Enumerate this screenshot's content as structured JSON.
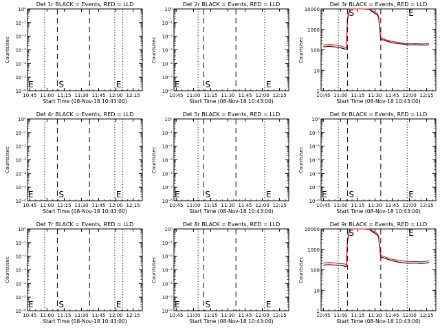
{
  "chart_data": [
    {
      "type": "line",
      "title": "Det 1r BLACK = Events, RED = LLD",
      "xlabel": "Start Time (08-Nov-18 10:43:00)",
      "ylabel": "Counts/sec",
      "x_tick_labels": [
        "10:45",
        "11:00",
        "11:15",
        "11:30",
        "11:45",
        "12:00",
        "12:15"
      ],
      "y_scale": "log",
      "y_tick_labels": [
        "10⁰",
        "10⁻¹",
        "10⁻²",
        "10⁻³",
        "10⁻⁴",
        "10⁻⁵",
        "10⁻⁶"
      ],
      "y_tick_values": [
        1,
        0.1,
        0.01,
        0.001,
        0.0001,
        1e-05,
        1e-06
      ],
      "markers": [
        {
          "type": "dotted",
          "x": "10:58"
        },
        {
          "type": "dashed",
          "x": "11:09",
          "label": "S"
        },
        {
          "type": "dashed",
          "x": "11:37"
        },
        {
          "type": "dotted",
          "x": "11:59",
          "label": "E"
        },
        {
          "type": "dotted",
          "x": "12:06"
        }
      ],
      "edge_label": "E",
      "series": []
    },
    {
      "type": "line",
      "title": "Det 2r BLACK = Events, RED = LLD",
      "xlabel": "Start Time (08-Nov-18 10:43:00)",
      "ylabel": "Counts/sec",
      "x_tick_labels": [
        "10:45",
        "11:00",
        "11:15",
        "11:30",
        "11:45",
        "12:00",
        "12:15"
      ],
      "y_scale": "log",
      "y_tick_labels": [
        "10⁰",
        "10⁻¹",
        "10⁻²",
        "10⁻³",
        "10⁻⁴",
        "10⁻⁵",
        "10⁻⁶"
      ],
      "y_tick_values": [
        1,
        0.1,
        0.01,
        0.001,
        0.0001,
        1e-05,
        1e-06
      ],
      "markers": [
        {
          "type": "dotted",
          "x": "11:04"
        },
        {
          "type": "dashed",
          "x": "11:09",
          "label": "S"
        },
        {
          "type": "dashed",
          "x": "11:37"
        },
        {
          "type": "dotted",
          "x": "12:02",
          "label": "E"
        }
      ],
      "edge_label": "E",
      "series": []
    },
    {
      "type": "line",
      "title": "Det 3r BLACK = Events, RED = LLD",
      "xlabel": "Start Time (08-Nov-18 10:43:00)",
      "ylabel": "Counts/sec",
      "x_tick_labels": [
        "10:45",
        "11:00",
        "11:15",
        "11:30",
        "11:45",
        "12:00",
        "12:15"
      ],
      "y_scale": "log",
      "y_tick_labels": [
        "1",
        "10",
        "100",
        "1000",
        "10000"
      ],
      "y_tick_values": [
        1,
        10,
        100,
        1000,
        10000
      ],
      "markers": [
        {
          "type": "dotted",
          "x": "10:58"
        },
        {
          "type": "dashed",
          "x": "11:06",
          "label": "S"
        },
        {
          "type": "dashed",
          "x": "11:35"
        },
        {
          "type": "dotted",
          "x": "11:58",
          "label": "E"
        }
      ],
      "series": [
        {
          "color": "#000000",
          "x": [
            "10:45",
            "10:50",
            "10:55",
            "11:00",
            "11:04",
            "11:05",
            "11:06",
            "11:08",
            "11:10",
            "11:15",
            "11:20",
            "11:25",
            "11:28",
            "11:30",
            "11:32",
            "11:33",
            "11:35",
            "11:38",
            "11:40",
            "11:45",
            "11:50",
            "11:55",
            "12:00",
            "12:05",
            "12:10",
            "12:15",
            "12:17"
          ],
          "y": [
            140,
            150,
            140,
            125,
            110,
            105,
            3000,
            11000,
            13000,
            13000,
            11000,
            9500,
            7000,
            6000,
            5000,
            4000,
            320,
            300,
            270,
            220,
            200,
            190,
            175,
            180,
            170,
            175,
            180
          ]
        },
        {
          "color": "#ff0000",
          "x": [
            "10:45",
            "10:50",
            "10:55",
            "11:00",
            "11:04",
            "11:05",
            "11:06",
            "11:08",
            "11:10",
            "11:15",
            "11:20",
            "11:25",
            "11:28",
            "11:30",
            "11:32",
            "11:33",
            "11:35",
            "11:38",
            "11:40",
            "11:45",
            "11:50",
            "11:55",
            "12:00",
            "12:05",
            "12:10",
            "12:15",
            "12:17"
          ],
          "y": [
            170,
            185,
            175,
            155,
            130,
            125,
            3500,
            13000,
            14000,
            14000,
            13000,
            11000,
            8000,
            7000,
            6000,
            4500,
            380,
            340,
            300,
            260,
            230,
            210,
            200,
            205,
            195,
            200,
            205
          ]
        }
      ]
    },
    {
      "type": "line",
      "title": "Det 4r BLACK = Events, RED = LLD",
      "xlabel": "Start Time (08-Nov-18 10:43:00)",
      "ylabel": "Counts/sec",
      "x_tick_labels": [
        "10:45",
        "11:00",
        "11:15",
        "11:30",
        "11:45",
        "12:00",
        "12:15"
      ],
      "y_scale": "log",
      "y_tick_labels": [
        "10⁰",
        "10⁻¹",
        "10⁻²",
        "10⁻³",
        "10⁻⁴",
        "10⁻⁵",
        "10⁻⁶"
      ],
      "y_tick_values": [
        1,
        0.1,
        0.01,
        0.001,
        0.0001,
        1e-05,
        1e-06
      ],
      "markers": [
        {
          "type": "dotted",
          "x": "10:58"
        },
        {
          "type": "dashed",
          "x": "11:09",
          "label": "S"
        },
        {
          "type": "dashed",
          "x": "11:37"
        },
        {
          "type": "dotted",
          "x": "11:59",
          "label": "E"
        },
        {
          "type": "dotted",
          "x": "12:06"
        }
      ],
      "edge_label": "E",
      "series": []
    },
    {
      "type": "line",
      "title": "Det 5r BLACK = Events, RED = LLD",
      "xlabel": "Start Time (08-Nov-18 10:43:00)",
      "ylabel": "Counts/sec",
      "x_tick_labels": [
        "10:45",
        "11:00",
        "11:15",
        "11:30",
        "11:45",
        "12:00",
        "12:15"
      ],
      "y_scale": "log",
      "y_tick_labels": [
        "10⁰",
        "10⁻¹",
        "10⁻²",
        "10⁻³",
        "10⁻⁴",
        "10⁻⁵",
        "10⁻⁶"
      ],
      "y_tick_values": [
        1,
        0.1,
        0.01,
        0.001,
        0.0001,
        1e-05,
        1e-06
      ],
      "markers": [
        {
          "type": "dotted",
          "x": "11:04"
        },
        {
          "type": "dashed",
          "x": "11:09",
          "label": "S"
        },
        {
          "type": "dashed",
          "x": "11:37"
        },
        {
          "type": "dotted",
          "x": "12:02",
          "label": "E"
        }
      ],
      "edge_label": "E",
      "series": []
    },
    {
      "type": "line",
      "title": "Det 6r BLACK = Events, RED = LLD",
      "xlabel": "Start Time (08-Nov-18 10:43:00)",
      "ylabel": "Counts/sec",
      "x_tick_labels": [
        "10:45",
        "11:00",
        "11:15",
        "11:30",
        "11:45",
        "12:00",
        "12:15"
      ],
      "y_scale": "log",
      "y_tick_labels": [
        "10⁰",
        "10⁻¹",
        "10⁻²",
        "10⁻³",
        "10⁻⁴",
        "10⁻⁵",
        "10⁻⁶"
      ],
      "y_tick_values": [
        1,
        0.1,
        0.01,
        0.001,
        0.0001,
        1e-05,
        1e-06
      ],
      "markers": [
        {
          "type": "dotted",
          "x": "10:58"
        },
        {
          "type": "dashed",
          "x": "11:06",
          "label": "S"
        },
        {
          "type": "dashed",
          "x": "11:35"
        },
        {
          "type": "dotted",
          "x": "11:58",
          "label": "E"
        }
      ],
      "edge_label": "E",
      "series": []
    },
    {
      "type": "line",
      "title": "Det 7r BLACK = Events, RED = LLD",
      "xlabel": "Start Time (08-Nov-18 10:43:00)",
      "ylabel": "Counts/sec",
      "x_tick_labels": [
        "10:45",
        "11:00",
        "11:15",
        "11:30",
        "11:45",
        "12:00",
        "12:15"
      ],
      "y_scale": "log",
      "y_tick_labels": [
        "10⁰",
        "10⁻¹",
        "10⁻²",
        "10⁻³",
        "10⁻⁴",
        "10⁻⁵",
        "10⁻⁶"
      ],
      "y_tick_values": [
        1,
        0.1,
        0.01,
        0.001,
        0.0001,
        1e-05,
        1e-06
      ],
      "markers": [
        {
          "type": "dotted",
          "x": "10:58"
        },
        {
          "type": "dashed",
          "x": "11:09",
          "label": "S"
        },
        {
          "type": "dashed",
          "x": "11:37"
        },
        {
          "type": "dotted",
          "x": "11:59",
          "label": "E"
        },
        {
          "type": "dotted",
          "x": "12:06"
        }
      ],
      "edge_label": "E",
      "series": []
    },
    {
      "type": "line",
      "title": "Det 8r BLACK = Events, RED = LLD",
      "xlabel": "Start Time (08-Nov-18 10:43:00)",
      "ylabel": "Counts/sec",
      "x_tick_labels": [
        "10:45",
        "11:00",
        "11:15",
        "11:30",
        "11:45",
        "12:00",
        "12:15"
      ],
      "y_scale": "log",
      "y_tick_labels": [
        "10⁰",
        "10⁻¹",
        "10⁻²",
        "10⁻³",
        "10⁻⁴",
        "10⁻⁵",
        "10⁻⁶"
      ],
      "y_tick_values": [
        1,
        0.1,
        0.01,
        0.001,
        0.0001,
        1e-05,
        1e-06
      ],
      "markers": [
        {
          "type": "dotted",
          "x": "11:04"
        },
        {
          "type": "dashed",
          "x": "11:09",
          "label": "S"
        },
        {
          "type": "dashed",
          "x": "11:37"
        },
        {
          "type": "dotted",
          "x": "12:02",
          "label": "E"
        }
      ],
      "edge_label": "E",
      "series": []
    },
    {
      "type": "line",
      "title": "Det 9r BLACK = Events, RED = LLD",
      "xlabel": "Start Time (08-Nov-18 10:43:00)",
      "ylabel": "Counts/sec",
      "x_tick_labels": [
        "10:45",
        "11:00",
        "11:15",
        "11:30",
        "11:45",
        "12:00",
        "12:15"
      ],
      "y_scale": "log",
      "y_tick_labels": [
        "1",
        "10",
        "100",
        "1000",
        "10000"
      ],
      "y_tick_values": [
        1,
        10,
        100,
        1000,
        10000
      ],
      "markers": [
        {
          "type": "dotted",
          "x": "10:58"
        },
        {
          "type": "dashed",
          "x": "11:06",
          "label": "S"
        },
        {
          "type": "dashed",
          "x": "11:35"
        },
        {
          "type": "dotted",
          "x": "11:58",
          "label": "E"
        }
      ],
      "series": [
        {
          "color": "#000000",
          "x": [
            "10:45",
            "10:50",
            "10:55",
            "11:00",
            "11:04",
            "11:05",
            "11:06",
            "11:08",
            "11:10",
            "11:15",
            "11:20",
            "11:25",
            "11:28",
            "11:30",
            "11:32",
            "11:33",
            "11:35",
            "11:38",
            "11:40",
            "11:45",
            "11:50",
            "11:55",
            "12:00",
            "12:05",
            "12:10",
            "12:15",
            "12:17"
          ],
          "y": [
            170,
            180,
            170,
            165,
            150,
            145,
            2500,
            11000,
            13000,
            13000,
            11000,
            9500,
            7000,
            6000,
            5000,
            4000,
            420,
            380,
            340,
            280,
            240,
            220,
            210,
            215,
            205,
            215,
            230
          ]
        },
        {
          "color": "#ff0000",
          "x": [
            "10:45",
            "10:50",
            "10:55",
            "11:00",
            "11:04",
            "11:05",
            "11:06",
            "11:08",
            "11:10",
            "11:15",
            "11:20",
            "11:25",
            "11:28",
            "11:30",
            "11:32",
            "11:33",
            "11:35",
            "11:38",
            "11:40",
            "11:45",
            "11:50",
            "11:55",
            "12:00",
            "12:05",
            "12:10",
            "12:15",
            "12:17"
          ],
          "y": [
            215,
            230,
            215,
            205,
            190,
            180,
            3000,
            13000,
            14000,
            14000,
            13000,
            11000,
            8000,
            7000,
            6000,
            4500,
            500,
            450,
            400,
            330,
            290,
            270,
            255,
            260,
            250,
            265,
            280
          ]
        }
      ]
    }
  ]
}
